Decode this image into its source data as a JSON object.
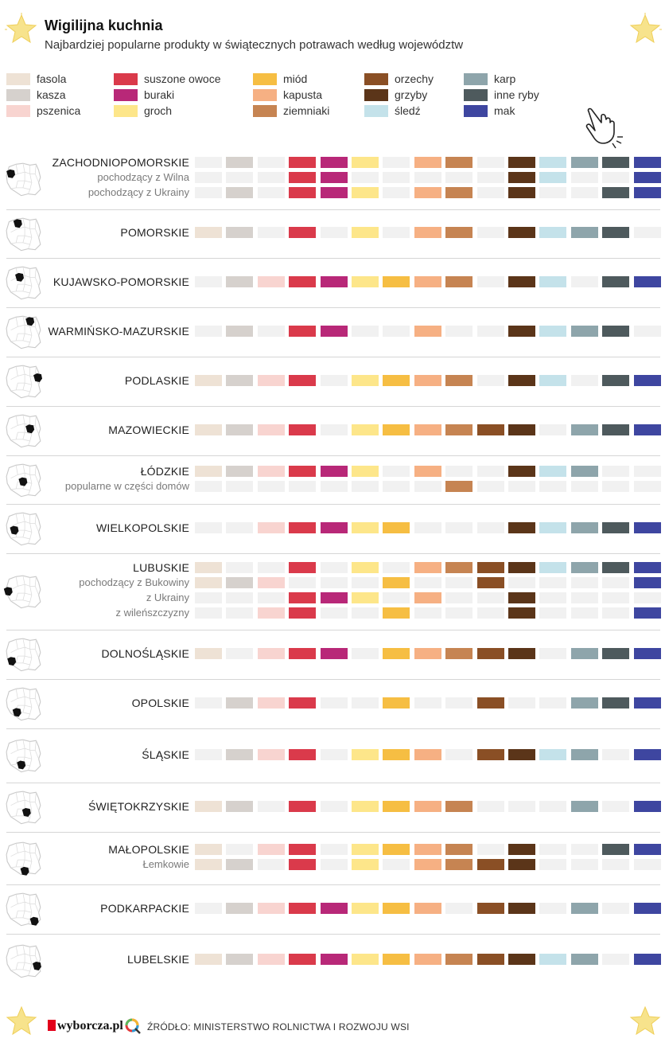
{
  "title": "Wigilijna kuchnia",
  "subtitle": "Najbardziej popularne produkty w świątecznych potrawach według województw",
  "icons": {
    "corner_star": "star-icon",
    "pointer": "hand-pointer-icon",
    "voivodeship_map": "poland-map-icon",
    "source_logo": "q-logo-icon"
  },
  "footer": {
    "brand": "wyborcza.pl",
    "source": "ŹRÓDŁO: MINISTERSTWO ROLNICTWA I ROZWOJU WSI"
  },
  "colors": {
    "inactive": "#f1f1f1",
    "star": "#f7e38c"
  },
  "chart_data": {
    "type": "table",
    "products": [
      {
        "key": "fasola",
        "label": "fasola",
        "color": "#eee2d5"
      },
      {
        "key": "kasza",
        "label": "kasza",
        "color": "#d6d1cd"
      },
      {
        "key": "pszenica",
        "label": "pszenica",
        "color": "#f8d4d0"
      },
      {
        "key": "suszone_owoce",
        "label": "suszone owoce",
        "color": "#da3a4b"
      },
      {
        "key": "buraki",
        "label": "buraki",
        "color": "#b82878"
      },
      {
        "key": "groch",
        "label": "groch",
        "color": "#fde68a"
      },
      {
        "key": "miod",
        "label": "miód",
        "color": "#f6be43"
      },
      {
        "key": "kapusta",
        "label": "kapusta",
        "color": "#f6b083"
      },
      {
        "key": "ziemniaki",
        "label": "ziemniaki",
        "color": "#c68452"
      },
      {
        "key": "orzechy",
        "label": "orzechy",
        "color": "#8a4f25"
      },
      {
        "key": "grzyby",
        "label": "grzyby",
        "color": "#5b3519"
      },
      {
        "key": "sledz",
        "label": "śledź",
        "color": "#c4e2ea"
      },
      {
        "key": "karp",
        "label": "karp",
        "color": "#8ea5ab"
      },
      {
        "key": "inne_ryby",
        "label": "inne ryby",
        "color": "#4e5a5d"
      },
      {
        "key": "mak",
        "label": "mak",
        "color": "#3e46a0"
      }
    ],
    "regions": [
      {
        "name": "ZACHODNIOPOMORSKIE",
        "rows": [
          {
            "label": "",
            "values": [
              0,
              1,
              0,
              1,
              1,
              1,
              0,
              1,
              1,
              0,
              1,
              1,
              1,
              1,
              1
            ]
          },
          {
            "label": "pochodzący z Wilna",
            "values": [
              0,
              0,
              0,
              1,
              1,
              0,
              0,
              0,
              0,
              0,
              1,
              1,
              0,
              0,
              1
            ]
          },
          {
            "label": "pochodzący z Ukrainy",
            "values": [
              0,
              1,
              0,
              1,
              1,
              1,
              0,
              1,
              1,
              0,
              1,
              0,
              0,
              1,
              1
            ]
          }
        ]
      },
      {
        "name": "POMORSKIE",
        "rows": [
          {
            "label": "",
            "values": [
              1,
              1,
              0,
              1,
              0,
              1,
              0,
              1,
              1,
              0,
              1,
              1,
              1,
              1,
              0
            ]
          }
        ]
      },
      {
        "name": "KUJAWSKO-POMORSKIE",
        "rows": [
          {
            "label": "",
            "values": [
              0,
              1,
              1,
              1,
              1,
              1,
              1,
              1,
              1,
              0,
              1,
              1,
              0,
              1,
              1
            ]
          }
        ]
      },
      {
        "name": "WARMIŃSKO-MAZURSKIE",
        "rows": [
          {
            "label": "",
            "values": [
              0,
              1,
              0,
              1,
              1,
              0,
              0,
              1,
              0,
              0,
              1,
              1,
              1,
              1,
              0
            ]
          }
        ]
      },
      {
        "name": "PODLASKIE",
        "rows": [
          {
            "label": "",
            "values": [
              1,
              1,
              1,
              1,
              0,
              1,
              1,
              1,
              1,
              0,
              1,
              1,
              0,
              1,
              1
            ]
          }
        ]
      },
      {
        "name": "MAZOWIECKIE",
        "rows": [
          {
            "label": "",
            "values": [
              1,
              1,
              1,
              1,
              0,
              1,
              1,
              1,
              1,
              1,
              1,
              0,
              1,
              1,
              1
            ]
          }
        ]
      },
      {
        "name": "ŁÓDZKIE",
        "rows": [
          {
            "label": "",
            "values": [
              1,
              1,
              1,
              1,
              1,
              1,
              0,
              1,
              0,
              0,
              1,
              1,
              1,
              0,
              0
            ]
          },
          {
            "label": "popularne w części domów",
            "values": [
              0,
              0,
              0,
              0,
              0,
              0,
              0,
              0,
              1,
              0,
              0,
              0,
              0,
              0,
              0
            ]
          }
        ]
      },
      {
        "name": "WIELKOPOLSKIE",
        "rows": [
          {
            "label": "",
            "values": [
              0,
              0,
              1,
              1,
              1,
              1,
              1,
              0,
              0,
              0,
              1,
              1,
              1,
              1,
              1
            ]
          }
        ]
      },
      {
        "name": "LUBUSKIE",
        "rows": [
          {
            "label": "",
            "values": [
              1,
              0,
              0,
              1,
              0,
              1,
              0,
              1,
              1,
              1,
              1,
              1,
              1,
              1,
              1
            ]
          },
          {
            "label": "pochodzący z Bukowiny",
            "values": [
              1,
              1,
              1,
              0,
              0,
              0,
              1,
              0,
              0,
              1,
              0,
              0,
              0,
              0,
              1
            ]
          },
          {
            "label": "z Ukrainy",
            "values": [
              0,
              0,
              0,
              1,
              1,
              1,
              0,
              1,
              0,
              0,
              1,
              0,
              0,
              0,
              0
            ]
          },
          {
            "label": "z wileńszczyzny",
            "values": [
              0,
              0,
              1,
              1,
              0,
              0,
              1,
              0,
              0,
              0,
              1,
              0,
              0,
              0,
              1
            ]
          }
        ]
      },
      {
        "name": "DOLNOŚLĄSKIE",
        "rows": [
          {
            "label": "",
            "values": [
              1,
              0,
              1,
              1,
              1,
              0,
              1,
              1,
              1,
              1,
              1,
              0,
              1,
              1,
              1
            ]
          }
        ]
      },
      {
        "name": "OPOLSKIE",
        "rows": [
          {
            "label": "",
            "values": [
              0,
              1,
              1,
              1,
              0,
              0,
              1,
              0,
              0,
              1,
              0,
              0,
              1,
              1,
              1
            ]
          }
        ]
      },
      {
        "name": "ŚLĄSKIE",
        "rows": [
          {
            "label": "",
            "values": [
              0,
              1,
              1,
              1,
              0,
              1,
              1,
              1,
              0,
              1,
              1,
              1,
              1,
              0,
              1
            ]
          }
        ]
      },
      {
        "name": "ŚWIĘTOKRZYSKIE",
        "rows": [
          {
            "label": "",
            "values": [
              1,
              1,
              0,
              1,
              0,
              1,
              1,
              1,
              1,
              0,
              0,
              0,
              1,
              0,
              1
            ]
          }
        ]
      },
      {
        "name": "MAŁOPOLSKIE",
        "rows": [
          {
            "label": "",
            "values": [
              1,
              0,
              1,
              1,
              0,
              1,
              1,
              1,
              1,
              0,
              1,
              0,
              0,
              1,
              1
            ]
          },
          {
            "label": "Łemkowie",
            "values": [
              1,
              1,
              0,
              1,
              0,
              1,
              0,
              1,
              1,
              1,
              1,
              0,
              0,
              0,
              0
            ]
          }
        ]
      },
      {
        "name": "PODKARPACKIE",
        "rows": [
          {
            "label": "",
            "values": [
              0,
              1,
              1,
              1,
              1,
              1,
              1,
              1,
              0,
              1,
              1,
              0,
              1,
              0,
              1
            ]
          }
        ]
      },
      {
        "name": "LUBELSKIE",
        "rows": [
          {
            "label": "",
            "values": [
              1,
              1,
              1,
              1,
              1,
              1,
              1,
              1,
              1,
              1,
              1,
              1,
              1,
              0,
              1
            ]
          }
        ]
      }
    ]
  }
}
